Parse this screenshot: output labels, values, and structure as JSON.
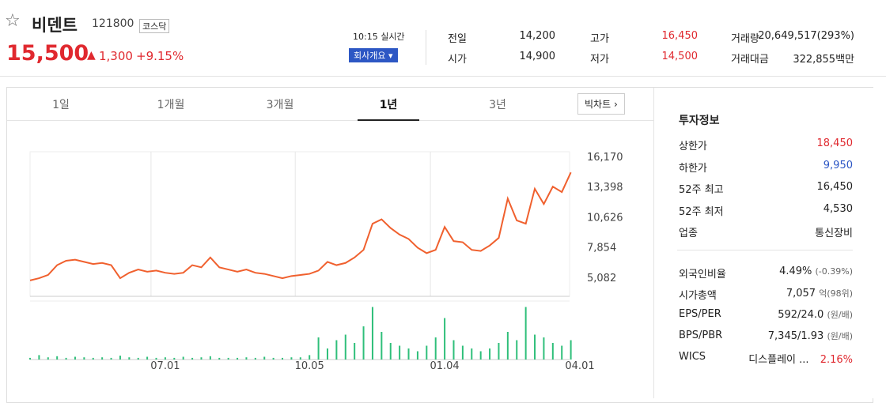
{
  "header": {
    "name": "비덴트",
    "code": "121800",
    "market": "코스닥",
    "price": "15,500",
    "change": "1,300",
    "rate": "+9.15%",
    "time": "10:15 실시간",
    "company_button": "회사개요"
  },
  "stats": [
    [
      "전일",
      "14,200",
      "고가",
      "16,450",
      "거래량",
      "20,649,517(293%)"
    ],
    [
      "시가",
      "14,900",
      "저가",
      "14,500",
      "거래대금",
      "322,855백만"
    ]
  ],
  "tabs": [
    "1일",
    "1개월",
    "3개월",
    "1년",
    "3년"
  ],
  "bigchart": "빅차트",
  "chart_data": [
    {
      "type": "line",
      "color": "#f0602e",
      "xlim": [
        0,
        61
      ],
      "ylim": [
        3340,
        16600
      ],
      "yticks": [
        {
          "value": 16170,
          "label": "16,170"
        },
        {
          "value": 13398,
          "label": "13,398"
        },
        {
          "value": 10626,
          "label": "10,626"
        },
        {
          "value": 7854,
          "label": "7,854"
        },
        {
          "value": 5082,
          "label": "5,082"
        }
      ],
      "xticks": [
        {
          "value": 15,
          "label": "07.01"
        },
        {
          "value": 31,
          "label": "10.05"
        },
        {
          "value": 46,
          "label": "01.04"
        },
        {
          "value": 61,
          "label": "04.01"
        }
      ],
      "values": [
        4800,
        5000,
        5300,
        6200,
        6600,
        6700,
        6500,
        6300,
        6400,
        6200,
        5000,
        5500,
        5800,
        5600,
        5700,
        5500,
        5400,
        5500,
        6200,
        6000,
        6900,
        6000,
        5800,
        5600,
        5800,
        5500,
        5400,
        5200,
        5000,
        5200,
        5300,
        5400,
        5700,
        6500,
        6200,
        6400,
        6900,
        7600,
        10000,
        10400,
        9600,
        9000,
        8600,
        7800,
        7300,
        7600,
        9700,
        8400,
        8300,
        7600,
        7500,
        8000,
        8700,
        12300,
        10300,
        10000,
        13200,
        11800,
        13400,
        12900,
        14700
      ]
    },
    {
      "type": "bar",
      "color": "#2fbf7a",
      "ylim": [
        0,
        100
      ],
      "values": [
        3,
        8,
        4,
        6,
        3,
        5,
        4,
        3,
        4,
        3,
        7,
        4,
        3,
        5,
        3,
        4,
        3,
        5,
        3,
        4,
        6,
        3,
        3,
        3,
        4,
        3,
        5,
        3,
        3,
        4,
        4,
        8,
        40,
        20,
        35,
        45,
        30,
        60,
        95,
        50,
        30,
        25,
        20,
        15,
        25,
        40,
        75,
        35,
        25,
        20,
        15,
        20,
        30,
        50,
        35,
        95,
        45,
        40,
        30,
        25,
        35
      ]
    }
  ],
  "info": {
    "title": "투자정보",
    "rows": [
      [
        "상한가",
        "18,450"
      ],
      [
        "하한가",
        "9,950"
      ],
      [
        "52주 최고",
        "16,450"
      ],
      [
        "52주 최저",
        "4,530"
      ],
      [
        "업종",
        "통신장비"
      ]
    ],
    "rows2": [
      [
        "외국인비율",
        "4.49%",
        "(-0.39%)"
      ],
      [
        "시가총액",
        "7,057",
        "억(98위)"
      ],
      [
        "EPS/PER",
        "592/24.0",
        "(원/배)"
      ],
      [
        "BPS/PBR",
        "7,345/1.93",
        "(원/배)"
      ],
      [
        "WICS",
        "디스플레이 ...",
        "2.16%"
      ]
    ]
  }
}
